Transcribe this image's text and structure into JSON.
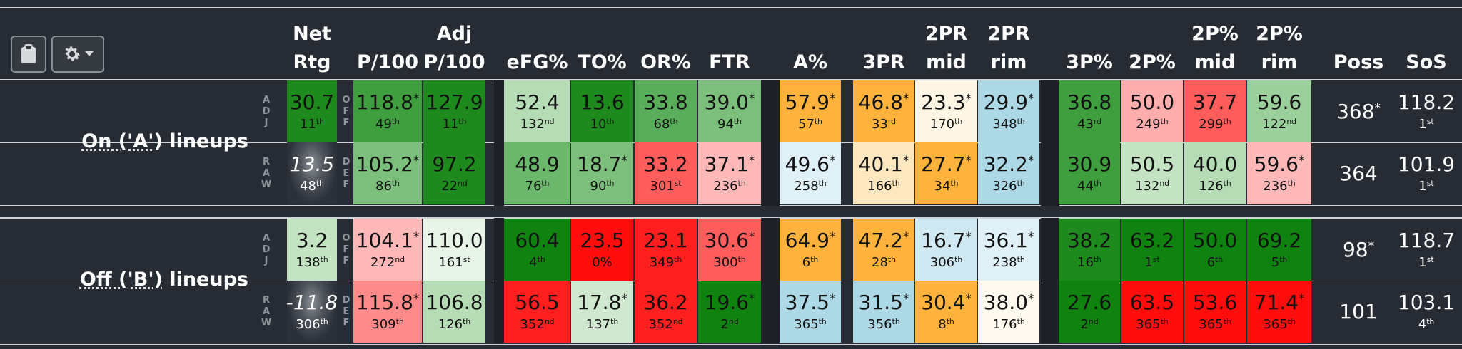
{
  "headers": {
    "net_rtg": [
      "Net",
      "Rtg"
    ],
    "p100": [
      "",
      "P/100"
    ],
    "adj_p100": [
      "Adj",
      "P/100"
    ],
    "efg": [
      "",
      "eFG%"
    ],
    "to": [
      "",
      "TO%"
    ],
    "or": [
      "",
      "OR%"
    ],
    "ftr": [
      "",
      "FTR"
    ],
    "a": [
      "",
      "A%"
    ],
    "threepr": [
      "",
      "3PR"
    ],
    "twopr_mid": [
      "2PR",
      "mid"
    ],
    "twopr_rim": [
      "2PR",
      "rim"
    ],
    "threep": [
      "",
      "3P%"
    ],
    "twop": [
      "",
      "2P%"
    ],
    "twop_mid": [
      "2P%",
      "mid"
    ],
    "twop_rim": [
      "2P%",
      "rim"
    ],
    "poss": [
      "",
      "Poss"
    ],
    "sos": [
      "",
      "SoS"
    ]
  },
  "toolbar": {
    "clipboard_icon": "clipboard-icon",
    "gear_icon": "gear-icon"
  },
  "side_labels": {
    "adj": "ADJ",
    "raw": "RAW",
    "off": "OFF",
    "def": "DEF"
  },
  "groups": [
    {
      "label_parts": [
        "On ('A')",
        " lineups"
      ],
      "rows": [
        {
          "net": {
            "v": "30.7",
            "r": "11",
            "s": "th",
            "bg": "#1e8a1e"
          },
          "cells": [
            {
              "v": "118.8",
              "star": true,
              "r": "49",
              "s": "th",
              "bg": "#3f9f3f"
            },
            {
              "v": "127.9",
              "star": false,
              "r": "11",
              "s": "th",
              "bg": "#1e8a1e"
            },
            {
              "v": "52.4",
              "star": false,
              "r": "132",
              "s": "nd",
              "bg": "#b5dcb5"
            },
            {
              "v": "13.6",
              "star": false,
              "r": "10",
              "s": "th",
              "bg": "#1e8a1e"
            },
            {
              "v": "33.8",
              "star": false,
              "r": "68",
              "s": "th",
              "bg": "#5aad5a"
            },
            {
              "v": "39.0",
              "star": true,
              "r": "94",
              "s": "th",
              "bg": "#7cbf7c"
            },
            {
              "v": "57.9",
              "star": true,
              "r": "57",
              "s": "th",
              "bg": "#ffb33c"
            },
            {
              "v": "46.8",
              "star": true,
              "r": "33",
              "s": "rd",
              "bg": "#ffb33c"
            },
            {
              "v": "23.3",
              "star": true,
              "r": "170",
              "s": "th",
              "bg": "#fff6e6"
            },
            {
              "v": "29.9",
              "star": true,
              "r": "348",
              "s": "th",
              "bg": "#add8e6"
            },
            {
              "v": "36.8",
              "star": false,
              "r": "43",
              "s": "rd",
              "bg": "#3f9f3f"
            },
            {
              "v": "50.0",
              "star": false,
              "r": "249",
              "s": "th",
              "bg": "#ffadad"
            },
            {
              "v": "37.7",
              "star": false,
              "r": "299",
              "s": "th",
              "bg": "#ff5c5c"
            },
            {
              "v": "59.6",
              "star": false,
              "r": "122",
              "s": "nd",
              "bg": "#9bcf9b"
            }
          ],
          "poss": {
            "v": "368",
            "star": true
          },
          "sos": {
            "v": "118.2",
            "r": "1",
            "s": "st"
          }
        },
        {
          "net": {
            "v": "13.5",
            "r": "48",
            "s": "th",
            "bg": "glow"
          },
          "cells": [
            {
              "v": "105.2",
              "star": true,
              "r": "86",
              "s": "th",
              "bg": "#7cbf7c"
            },
            {
              "v": "97.2",
              "star": false,
              "r": "22",
              "s": "nd",
              "bg": "#1e8a1e"
            },
            {
              "v": "48.9",
              "star": false,
              "r": "76",
              "s": "th",
              "bg": "#6bb76b"
            },
            {
              "v": "18.7",
              "star": true,
              "r": "90",
              "s": "th",
              "bg": "#7cbf7c"
            },
            {
              "v": "33.2",
              "star": false,
              "r": "301",
              "s": "st",
              "bg": "#ff5c5c"
            },
            {
              "v": "37.1",
              "star": true,
              "r": "236",
              "s": "th",
              "bg": "#ffb8b8"
            },
            {
              "v": "49.6",
              "star": true,
              "r": "258",
              "s": "th",
              "bg": "#dff0f7"
            },
            {
              "v": "40.1",
              "star": true,
              "r": "166",
              "s": "th",
              "bg": "#ffe8c0"
            },
            {
              "v": "27.7",
              "star": true,
              "r": "34",
              "s": "th",
              "bg": "#ffb33c"
            },
            {
              "v": "32.2",
              "star": true,
              "r": "326",
              "s": "th",
              "bg": "#add8e6"
            },
            {
              "v": "30.9",
              "star": false,
              "r": "44",
              "s": "th",
              "bg": "#3f9f3f"
            },
            {
              "v": "50.5",
              "star": false,
              "r": "132",
              "s": "nd",
              "bg": "#c3e3c3"
            },
            {
              "v": "40.0",
              "star": false,
              "r": "126",
              "s": "th",
              "bg": "#b5dcb5"
            },
            {
              "v": "59.6",
              "star": true,
              "r": "236",
              "s": "th",
              "bg": "#ffb8b8"
            }
          ],
          "poss": {
            "v": "364",
            "star": false
          },
          "sos": {
            "v": "101.9",
            "r": "1",
            "s": "st"
          }
        }
      ]
    },
    {
      "label_parts": [
        "Off ('B')",
        " lineups"
      ],
      "rows": [
        {
          "net": {
            "v": "3.2",
            "r": "138",
            "s": "th",
            "bg": "#c3e3c3"
          },
          "cells": [
            {
              "v": "104.1",
              "star": true,
              "r": "272",
              "s": "nd",
              "bg": "#ffb8b8"
            },
            {
              "v": "110.0",
              "star": false,
              "r": "161",
              "s": "st",
              "bg": "#e8f4e8"
            },
            {
              "v": "60.4",
              "star": false,
              "r": "4",
              "s": "th",
              "bg": "#0f820f"
            },
            {
              "v": "23.5",
              "star": false,
              "r": "0%",
              "s": "",
              "bg": "#ff0d0d"
            },
            {
              "v": "23.1",
              "star": false,
              "r": "349",
              "s": "th",
              "bg": "#ff1f1f"
            },
            {
              "v": "30.6",
              "star": true,
              "r": "300",
              "s": "th",
              "bg": "#ff5c5c"
            },
            {
              "v": "64.9",
              "star": true,
              "r": "6",
              "s": "th",
              "bg": "#ffb33c"
            },
            {
              "v": "47.2",
              "star": true,
              "r": "28",
              "s": "th",
              "bg": "#ffb33c"
            },
            {
              "v": "16.7",
              "star": true,
              "r": "306",
              "s": "th",
              "bg": "#cfe8f1"
            },
            {
              "v": "36.1",
              "star": true,
              "r": "238",
              "s": "th",
              "bg": "#dff0f7"
            },
            {
              "v": "38.2",
              "star": false,
              "r": "16",
              "s": "th",
              "bg": "#1e8a1e"
            },
            {
              "v": "63.2",
              "star": false,
              "r": "1",
              "s": "st",
              "bg": "#0f820f"
            },
            {
              "v": "50.0",
              "star": false,
              "r": "6",
              "s": "th",
              "bg": "#0f820f"
            },
            {
              "v": "69.2",
              "star": false,
              "r": "5",
              "s": "th",
              "bg": "#0f820f"
            }
          ],
          "poss": {
            "v": "98",
            "star": true
          },
          "sos": {
            "v": "118.7",
            "r": "1",
            "s": "st"
          }
        },
        {
          "net": {
            "v": "-11.8",
            "r": "306",
            "s": "th",
            "bg": "glow"
          },
          "cells": [
            {
              "v": "115.8",
              "star": true,
              "r": "309",
              "s": "th",
              "bg": "#ff8a8a"
            },
            {
              "v": "106.8",
              "star": false,
              "r": "126",
              "s": "th",
              "bg": "#b5dcb5"
            },
            {
              "v": "56.5",
              "star": false,
              "r": "352",
              "s": "nd",
              "bg": "#ff1f1f"
            },
            {
              "v": "17.8",
              "star": true,
              "r": "137",
              "s": "th",
              "bg": "#cfe8cf"
            },
            {
              "v": "36.2",
              "star": false,
              "r": "352",
              "s": "nd",
              "bg": "#ff1f1f"
            },
            {
              "v": "19.6",
              "star": true,
              "r": "2",
              "s": "nd",
              "bg": "#0f820f"
            },
            {
              "v": "37.5",
              "star": true,
              "r": "365",
              "s": "th",
              "bg": "#add8e6"
            },
            {
              "v": "31.5",
              "star": true,
              "r": "356",
              "s": "th",
              "bg": "#add8e6"
            },
            {
              "v": "30.4",
              "star": true,
              "r": "8",
              "s": "th",
              "bg": "#ffb33c"
            },
            {
              "v": "38.0",
              "star": true,
              "r": "176",
              "s": "th",
              "bg": "#fffaf0"
            },
            {
              "v": "27.6",
              "star": false,
              "r": "2",
              "s": "nd",
              "bg": "#0f820f"
            },
            {
              "v": "63.5",
              "star": false,
              "r": "365",
              "s": "th",
              "bg": "#ff0d0d"
            },
            {
              "v": "53.6",
              "star": false,
              "r": "365",
              "s": "th",
              "bg": "#ff0d0d"
            },
            {
              "v": "71.4",
              "star": true,
              "r": "365",
              "s": "th",
              "bg": "#ff0d0d"
            }
          ],
          "poss": {
            "v": "101",
            "star": false
          },
          "sos": {
            "v": "103.1",
            "r": "4",
            "s": "th"
          }
        }
      ]
    }
  ],
  "colors": {
    "background": "#272b33",
    "divider": "#cfd2d6",
    "side_label": "#8e939b"
  }
}
